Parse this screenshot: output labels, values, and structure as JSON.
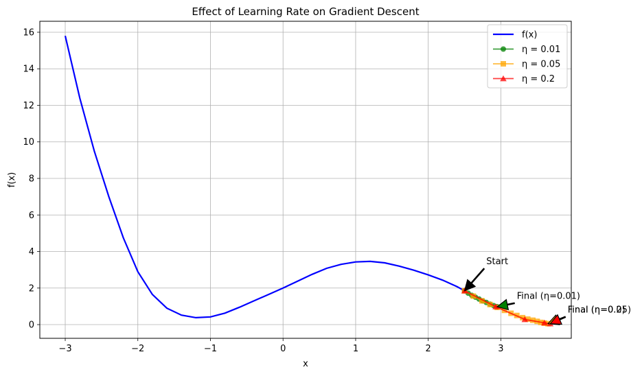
{
  "chart_data": {
    "type": "line",
    "title": "Effect of Learning Rate on Gradient Descent",
    "xlabel": "x",
    "ylabel": "f(x)",
    "xlim": [
      -3.35,
      3.97
    ],
    "ylim": [
      -0.75,
      16.6
    ],
    "xticks": [
      -3,
      -2,
      -1,
      0,
      1,
      2,
      3
    ],
    "yticks": [
      0,
      2,
      4,
      6,
      8,
      10,
      12,
      14,
      16
    ],
    "grid": true,
    "legend_position": "top-right",
    "curve": {
      "name": "f(x)",
      "color": "#0000ff",
      "x": [
        -3.0,
        -2.8,
        -2.6,
        -2.4,
        -2.2,
        -2.0,
        -1.8,
        -1.6,
        -1.4,
        -1.2,
        -1.0,
        -0.8,
        -0.6,
        -0.4,
        -0.2,
        0.0,
        0.2,
        0.4,
        0.6,
        0.8,
        1.0,
        1.2,
        1.4,
        1.6,
        1.8,
        2.0,
        2.2,
        2.4,
        2.5
      ],
      "y": [
        15.8,
        12.4,
        9.5,
        7.0,
        4.75,
        2.9,
        1.65,
        0.9,
        0.52,
        0.38,
        0.42,
        0.63,
        0.95,
        1.3,
        1.65,
        2.0,
        2.38,
        2.75,
        3.08,
        3.3,
        3.43,
        3.46,
        3.38,
        3.2,
        2.98,
        2.72,
        2.43,
        2.07,
        1.85
      ]
    },
    "series": [
      {
        "name": "η = 0.01",
        "color": "#008000",
        "marker": "circle",
        "x": [
          2.5,
          2.55,
          2.6,
          2.65,
          2.7,
          2.75,
          2.8,
          2.85,
          2.9,
          2.95
        ],
        "y": [
          1.85,
          1.72,
          1.6,
          1.5,
          1.4,
          1.3,
          1.21,
          1.12,
          1.04,
          0.98
        ]
      },
      {
        "name": "η = 0.05",
        "color": "#ffa500",
        "marker": "square",
        "x": [
          2.5,
          2.62,
          2.74,
          2.85,
          2.95,
          3.05,
          3.14,
          3.22,
          3.3,
          3.37,
          3.44,
          3.5,
          3.55,
          3.6,
          3.65
        ],
        "y": [
          1.85,
          1.56,
          1.3,
          1.1,
          0.94,
          0.78,
          0.62,
          0.5,
          0.38,
          0.3,
          0.24,
          0.18,
          0.12,
          0.08,
          0.05
        ]
      },
      {
        "name": "η = 0.2",
        "color": "#ff0000",
        "marker": "triangle",
        "x": [
          2.5,
          2.93,
          3.33,
          3.6,
          3.68
        ],
        "y": [
          1.85,
          0.98,
          0.28,
          0.1,
          0.05
        ]
      }
    ],
    "annotations": [
      {
        "text": "Start",
        "x": 2.5,
        "y": 1.85,
        "text_x": 2.8,
        "text_y": 3.3,
        "color": "#000000"
      },
      {
        "text": "Final (η=0.01)",
        "x": 2.95,
        "y": 0.98,
        "text_x": 3.22,
        "text_y": 1.4,
        "color": "#008000"
      },
      {
        "text": "Final (η=0.05)",
        "x": 3.65,
        "y": 0.05,
        "text_x": 3.92,
        "text_y": 0.65,
        "color": "#ffa500"
      },
      {
        "text": "Final (η=0.2)",
        "x": 3.68,
        "y": 0.05,
        "text_x": 3.92,
        "text_y": 0.65,
        "color": "#ff0000"
      }
    ]
  }
}
